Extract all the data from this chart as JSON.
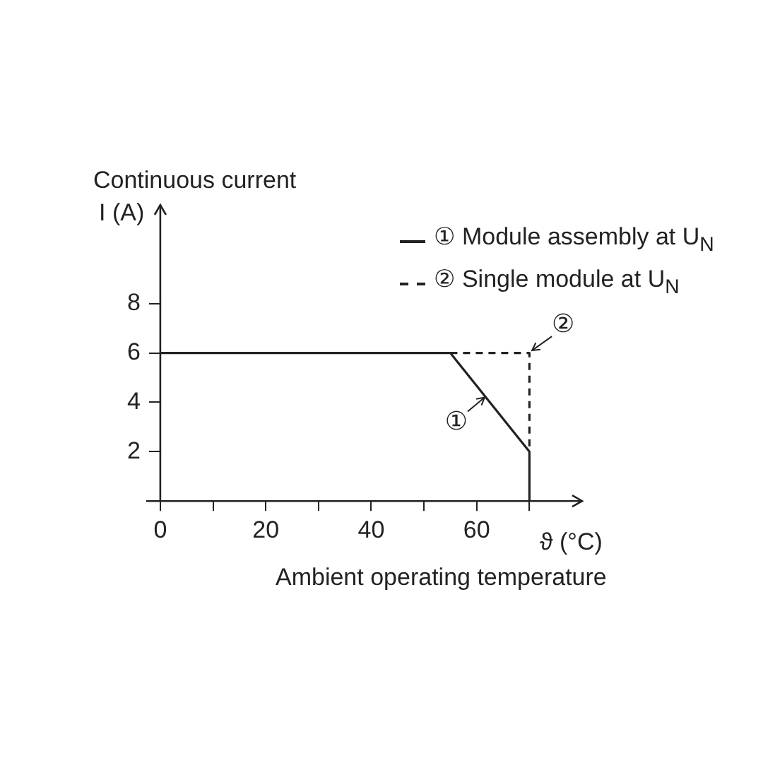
{
  "chart_data": {
    "type": "line",
    "title": "Continuous current",
    "ylabel": "I (A)",
    "xlabel": "ϑ (°C)",
    "annotations": [
      "Ambient operating temperature",
      {
        "text": "①",
        "x": 61.5,
        "y": 4.2
      },
      {
        "text": "②",
        "x": 70.5,
        "y": 6.1
      }
    ],
    "series": [
      {
        "name": "① Module assembly at U$_{N}$",
        "color": "#222222",
        "line_style": "solid",
        "x": [
          0,
          55,
          70,
          70
        ],
        "values": [
          6,
          6,
          2,
          0
        ]
      },
      {
        "name": "② Single module at U$_{N}$",
        "color": "#222222",
        "line_style": "dashed",
        "x": [
          55,
          70,
          70
        ],
        "values": [
          6,
          6,
          2
        ]
      }
    ],
    "xlim": [
      0,
      80
    ],
    "ylim": [
      0,
      12
    ],
    "xticks": [
      0,
      {
        "value": 10,
        "label": null
      },
      20,
      {
        "value": 30,
        "label": null
      },
      40,
      {
        "value": 50,
        "label": null
      },
      60,
      {
        "value": 70,
        "label": null
      }
    ],
    "yticks": [
      2,
      4,
      6,
      8
    ],
    "grid": false,
    "legend": "top right",
    "marker": "none"
  }
}
